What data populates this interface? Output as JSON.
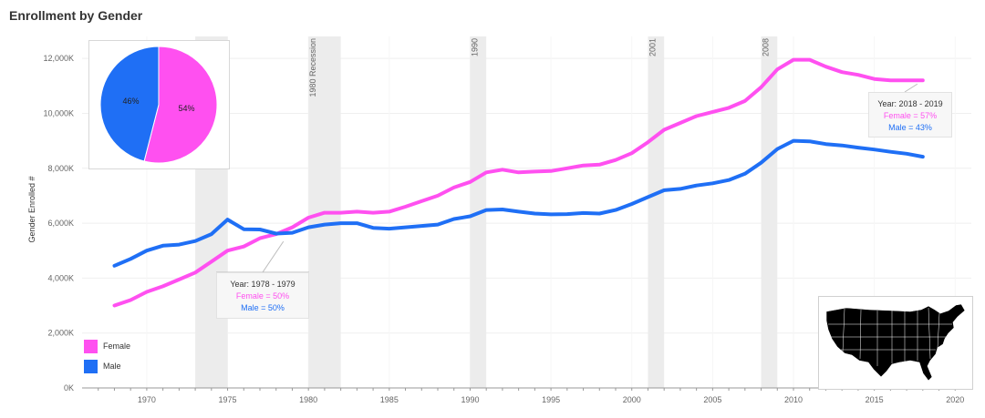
{
  "title": "Enrollment by Gender",
  "colors": {
    "female": "#ff50f0",
    "male": "#1f6ff5",
    "band": "#ececec",
    "grid": "#efefef"
  },
  "chart_data": {
    "type": "line",
    "ylabel": "Gender Enrolled #",
    "xlim": [
      1966,
      2021
    ],
    "ylim": [
      0,
      12800
    ],
    "y_ticks": [
      0,
      2000,
      4000,
      6000,
      8000,
      10000,
      12000
    ],
    "y_tick_labels": [
      "0K",
      "2,000K",
      "4,000K",
      "6,000K",
      "8,000K",
      "10,000K",
      "12,000K"
    ],
    "x_ticks": [
      1970,
      1975,
      1980,
      1985,
      1990,
      1995,
      2000,
      2005,
      2010,
      2015,
      2020
    ],
    "recession_bands": [
      {
        "start": 1973,
        "end": 1975,
        "label": ""
      },
      {
        "start": 1980,
        "end": 1982,
        "label": "1980  Recession"
      },
      {
        "start": 1990,
        "end": 1991,
        "label": "1990"
      },
      {
        "start": 2001,
        "end": 2002,
        "label": "2001"
      },
      {
        "start": 2008,
        "end": 2009,
        "label": "2008"
      }
    ],
    "series": [
      {
        "name": "Female",
        "x": [
          1968,
          1969,
          1970,
          1971,
          1972,
          1973,
          1974,
          1975,
          1976,
          1977,
          1978,
          1979,
          1980,
          1981,
          1982,
          1983,
          1984,
          1985,
          1986,
          1987,
          1988,
          1989,
          1990,
          1991,
          1992,
          1993,
          1994,
          1995,
          1996,
          1997,
          1998,
          1999,
          2000,
          2001,
          2002,
          2003,
          2004,
          2005,
          2006,
          2007,
          2008,
          2009,
          2010,
          2011,
          2012,
          2013,
          2014,
          2015,
          2016,
          2017,
          2018
        ],
        "values": [
          3000,
          3200,
          3500,
          3700,
          3950,
          4200,
          4600,
          5000,
          5150,
          5450,
          5600,
          5850,
          6200,
          6380,
          6380,
          6420,
          6380,
          6420,
          6600,
          6800,
          7000,
          7300,
          7500,
          7850,
          7950,
          7850,
          7880,
          7900,
          8000,
          8100,
          8130,
          8300,
          8550,
          8950,
          9400,
          9650,
          9900,
          10050,
          10200,
          10450,
          10950,
          11600,
          11950,
          11950,
          11700,
          11500,
          11400,
          11250,
          11200,
          11200,
          11200
        ]
      },
      {
        "name": "Male",
        "x": [
          1968,
          1969,
          1970,
          1971,
          1972,
          1973,
          1974,
          1975,
          1976,
          1977,
          1978,
          1979,
          1980,
          1981,
          1982,
          1983,
          1984,
          1985,
          1986,
          1987,
          1988,
          1989,
          1990,
          1991,
          1992,
          1993,
          1994,
          1995,
          1996,
          1997,
          1998,
          1999,
          2000,
          2001,
          2002,
          2003,
          2004,
          2005,
          2006,
          2007,
          2008,
          2009,
          2010,
          2011,
          2012,
          2013,
          2014,
          2015,
          2016,
          2017,
          2018
        ],
        "values": [
          4450,
          4700,
          5000,
          5180,
          5220,
          5350,
          5600,
          6130,
          5780,
          5770,
          5620,
          5650,
          5850,
          5950,
          6000,
          6000,
          5830,
          5800,
          5850,
          5900,
          5950,
          6150,
          6250,
          6480,
          6500,
          6420,
          6350,
          6320,
          6330,
          6370,
          6350,
          6480,
          6700,
          6950,
          7200,
          7250,
          7370,
          7450,
          7570,
          7800,
          8200,
          8700,
          9000,
          8980,
          8880,
          8830,
          8750,
          8680,
          8600,
          8530,
          8420
        ]
      }
    ],
    "pie": {
      "slices": [
        {
          "name": "Female",
          "value": 54,
          "label": "54%"
        },
        {
          "name": "Male",
          "value": 46,
          "label": "46%"
        }
      ]
    },
    "annotations": [
      {
        "year_label": "Year: 1978 - 1979",
        "female_label": "Female = 50%",
        "male_label": "Male = 50%",
        "x": 1978,
        "y": 5600
      },
      {
        "year_label": "Year: 2018 - 2019",
        "female_label": "Female = 57%",
        "male_label": "Male = 43%",
        "x": 2018,
        "y": 11200
      }
    ],
    "legend": [
      {
        "name": "Female"
      },
      {
        "name": "Male"
      }
    ]
  }
}
